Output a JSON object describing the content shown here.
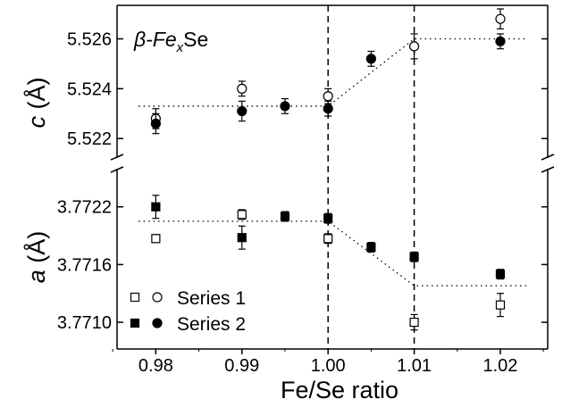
{
  "chart_data": {
    "type": "scatter",
    "annotation": {
      "prefix": "β-Fe",
      "sub": "x",
      "suffix": "Se"
    },
    "xlabel": "Fe/Se ratio",
    "xlim": [
      0.9755,
      1.0255
    ],
    "xticks": [
      "0.98",
      "0.99",
      "1.00",
      "1.01",
      "1.02"
    ],
    "xtick_values": [
      0.98,
      0.99,
      1.0,
      1.01,
      1.02
    ],
    "vlines": [
      1.0,
      1.01
    ],
    "panels": [
      {
        "id": "c",
        "ylabel_var": "c",
        "ylabel_unit": " (Å)",
        "ylim": [
          5.5214,
          5.5272
        ],
        "yticks": [
          "5.522",
          "5.524",
          "5.526"
        ],
        "ytick_values": [
          5.522,
          5.524,
          5.526
        ],
        "trend": [
          [
            0.978,
            5.5233
          ],
          [
            1.0,
            5.5233
          ],
          [
            1.01,
            5.526
          ],
          [
            1.023,
            5.526
          ]
        ],
        "series": [
          {
            "name": "Series 1",
            "marker": "circle-open",
            "points": [
              [
                0.98,
                5.5228,
                0.0004
              ],
              [
                0.99,
                5.524,
                0.0003
              ],
              [
                1.0,
                5.5237,
                0.0003
              ],
              [
                1.01,
                5.5257,
                0.0005
              ],
              [
                1.02,
                5.5268,
                0.0004
              ]
            ]
          },
          {
            "name": "Series 2",
            "marker": "circle-filled",
            "points": [
              [
                0.98,
                5.5226,
                0.0004
              ],
              [
                0.99,
                5.5231,
                0.0004
              ],
              [
                0.995,
                5.5233,
                0.0003
              ],
              [
                1.0,
                5.5232,
                0.0003
              ],
              [
                1.005,
                5.5252,
                0.0003
              ],
              [
                1.02,
                5.5259,
                0.0003
              ]
            ]
          }
        ]
      },
      {
        "id": "a",
        "ylabel_var": "a",
        "ylabel_unit": " (Å)",
        "ylim": [
          3.77075,
          3.77255
        ],
        "yticks": [
          "3.7710",
          "3.7716",
          "3.7722"
        ],
        "ytick_values": [
          3.771,
          3.7716,
          3.7722
        ],
        "trend": [
          [
            0.978,
            3.77205
          ],
          [
            1.0,
            3.77205
          ],
          [
            1.01,
            3.77138
          ],
          [
            1.023,
            3.77138
          ]
        ],
        "series": [
          {
            "name": "Series 1",
            "marker": "square-open",
            "points": [
              [
                0.98,
                3.77187,
                4e-05
              ],
              [
                0.99,
                3.77212,
                5e-05
              ],
              [
                1.0,
                3.77187,
                5e-05
              ],
              [
                1.01,
                3.771,
                8e-05
              ],
              [
                1.02,
                3.77118,
                0.00012
              ]
            ]
          },
          {
            "name": "Series 2",
            "marker": "square-filled",
            "points": [
              [
                0.98,
                3.7722,
                0.00012
              ],
              [
                0.99,
                3.77188,
                0.00012
              ],
              [
                0.995,
                3.7721,
                5e-05
              ],
              [
                1.0,
                3.77208,
                5e-05
              ],
              [
                1.005,
                3.77178,
                5e-05
              ],
              [
                1.01,
                3.77168,
                5e-05
              ],
              [
                1.02,
                3.7715,
                5e-05
              ]
            ]
          }
        ]
      }
    ],
    "legend": {
      "position": "bottom-left",
      "entries": [
        {
          "label": "Series 1",
          "markers": [
            "square-open",
            "circle-open"
          ]
        },
        {
          "label": "Series 2",
          "markers": [
            "square-filled",
            "circle-filled"
          ]
        }
      ]
    }
  }
}
